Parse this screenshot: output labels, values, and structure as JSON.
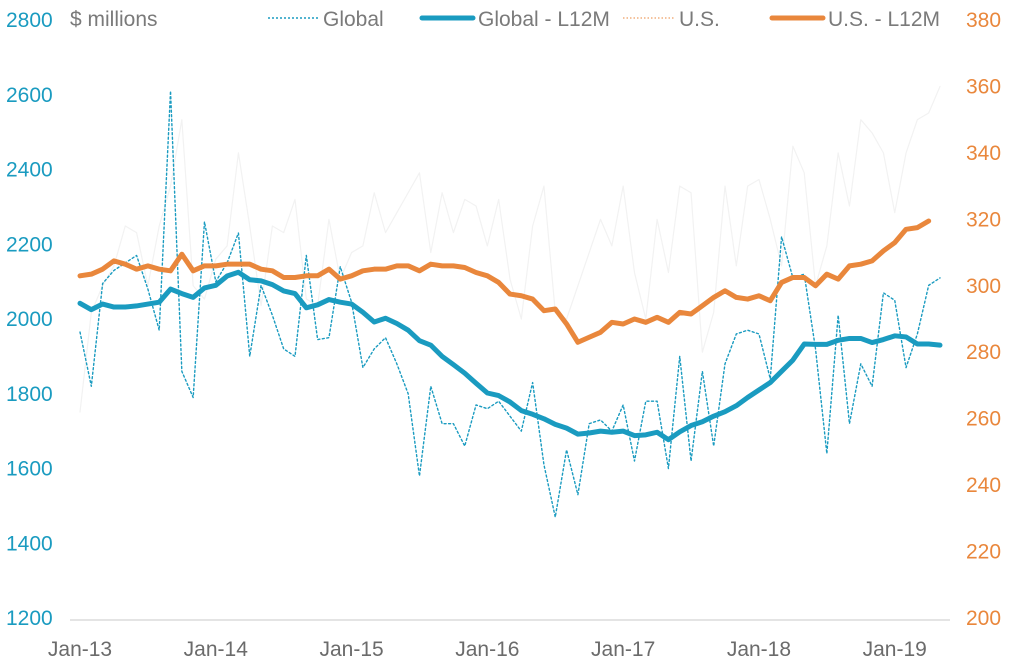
{
  "chart_data": {
    "type": "line",
    "unit_label": "$ millions",
    "x_tick_labels": [
      "Jan-13",
      "Jan-14",
      "Jan-15",
      "Jan-16",
      "Jan-17",
      "Jan-18",
      "Jan-19"
    ],
    "y_left_ticks": [
      1200,
      1400,
      1600,
      1800,
      2000,
      2200,
      2400,
      2600,
      2800
    ],
    "y_right_ticks": [
      200,
      220,
      240,
      260,
      280,
      300,
      320,
      340,
      360,
      380
    ],
    "ylim_left": [
      1200,
      2800
    ],
    "ylim_right": [
      200,
      380
    ],
    "x_start": "Jan-13",
    "x_end": "Jun-19",
    "legend_position": "top",
    "grid": false,
    "colors": {
      "global": "#1a9bc0",
      "us": "#e9873c",
      "tick_left": "#1a9bc0",
      "tick_right": "#e9873c",
      "axis_text": "#6b6b6b"
    },
    "series": [
      {
        "name": "Global",
        "axis": "left",
        "style": "dotted",
        "values": [
          1965,
          1820,
          2095,
          2130,
          2150,
          2170,
          2080,
          1970,
          2610,
          1860,
          1790,
          2260,
          2100,
          2150,
          2230,
          1900,
          2090,
          2010,
          1920,
          1900,
          2170,
          1945,
          1950,
          2140,
          2045,
          1870,
          1920,
          1950,
          1880,
          1800,
          1580,
          1820,
          1720,
          1720,
          1660,
          1770,
          1760,
          1780,
          1740,
          1700,
          1830,
          1610,
          1470,
          1650,
          1530,
          1720,
          1730,
          1700,
          1770,
          1620,
          1780,
          1780,
          1600,
          1900,
          1620,
          1860,
          1660,
          1880,
          1960,
          1970,
          1960,
          1840,
          2220,
          2110,
          2120,
          1920,
          1640,
          2010,
          1720,
          1880,
          1820,
          2070,
          2050,
          1870,
          1960,
          2090,
          2110
        ]
      },
      {
        "name": "Global - L12M",
        "axis": "left",
        "style": "solid",
        "values": [
          2042,
          2025,
          2040,
          2032,
          2032,
          2035,
          2040,
          2045,
          2080,
          2068,
          2058,
          2083,
          2090,
          2115,
          2125,
          2105,
          2102,
          2092,
          2075,
          2068,
          2030,
          2038,
          2052,
          2045,
          2040,
          2018,
          1992,
          2002,
          1988,
          1970,
          1942,
          1930,
          1900,
          1878,
          1855,
          1828,
          1802,
          1795,
          1778,
          1755,
          1745,
          1733,
          1718,
          1708,
          1692,
          1695,
          1700,
          1697,
          1700,
          1688,
          1690,
          1697,
          1677,
          1698,
          1715,
          1725,
          1740,
          1752,
          1768,
          1790,
          1810,
          1830,
          1860,
          1890,
          1933,
          1932,
          1932,
          1943,
          1948,
          1948,
          1937,
          1945,
          1955,
          1952,
          1933,
          1933,
          1930
        ]
      },
      {
        "name": "U.S.",
        "axis": "right",
        "style": "dotted",
        "values": [
          262,
          292,
          300,
          306,
          318,
          316,
          300,
          318,
          330,
          350,
          300,
          296,
          308,
          312,
          340,
          318,
          294,
          318,
          316,
          326,
          296,
          294,
          320,
          302,
          310,
          312,
          328,
          316,
          322,
          328,
          334,
          310,
          328,
          316,
          326,
          324,
          312,
          326,
          302,
          290,
          318,
          330,
          292,
          290,
          300,
          310,
          320,
          312,
          330,
          304,
          290,
          320,
          304,
          330,
          328,
          280,
          292,
          330,
          306,
          330,
          332,
          320,
          306,
          342,
          334,
          300,
          312,
          340,
          324,
          350,
          346,
          340,
          322,
          340,
          350,
          352,
          360
        ]
      },
      {
        "name": "U.S. - L12M",
        "axis": "right",
        "style": "solid",
        "values": [
          303,
          303.5,
          305,
          307.5,
          306.5,
          305,
          306,
          305,
          304.5,
          309.5,
          304.5,
          306,
          306,
          306.5,
          306.5,
          306.5,
          305,
          304.5,
          302.5,
          302.5,
          303,
          303,
          305,
          302,
          303,
          304.5,
          305,
          305,
          306,
          306,
          304.5,
          306.5,
          306,
          306,
          305.5,
          304,
          303,
          301,
          297.5,
          297,
          296,
          292.5,
          293,
          288.5,
          283,
          284.5,
          286,
          289,
          288.5,
          290,
          289,
          290.5,
          289,
          292,
          291.5,
          294,
          296.5,
          298.5,
          296.5,
          296,
          297,
          295.5,
          301,
          302.5,
          302.5,
          300,
          303.5,
          302,
          306,
          306.5,
          307.5,
          310.5,
          313,
          317,
          317.5,
          319.5
        ]
      }
    ]
  }
}
